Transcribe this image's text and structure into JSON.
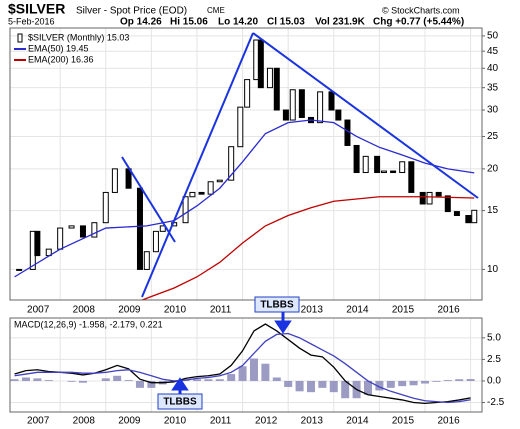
{
  "header": {
    "symbol": "$SILVER",
    "name": "Silver - Spot Price (EOD)",
    "exchange": "CME",
    "date": "5-Feb-2016",
    "open": "Op 14.26",
    "high": "Hi 15.06",
    "low": "Lo 14.20",
    "close": "Cl 15.03",
    "volume": "Vol 231.9K",
    "change": "Chg +0.77 (+5.44%)",
    "copyright": "© StockCharts.com"
  },
  "chart_data": [
    {
      "type": "candlestick",
      "x": [
        2006.1,
        2006.4,
        2006.5,
        2006.75,
        2007.0,
        2007.25,
        2007.5,
        2007.75,
        2008.0,
        2008.2,
        2008.5,
        2008.75,
        2008.9,
        2009.1,
        2009.25,
        2009.5,
        2009.75,
        2009.9,
        2010.1,
        2010.3,
        2010.5,
        2010.75,
        2010.95,
        2011.1,
        2011.3,
        2011.4,
        2011.6,
        2011.75,
        2011.95,
        2012.1,
        2012.3,
        2012.5,
        2012.7,
        2012.95,
        2013.1,
        2013.3,
        2013.5,
        2013.7,
        2013.95,
        2014.1,
        2014.3,
        2014.5,
        2014.7,
        2014.95,
        2015.1,
        2015.3,
        2015.5,
        2015.7,
        2015.95,
        2016.08
      ],
      "series": [
        {
          "name": "$SILVER (Monthly) 15.03",
          "color": "#000000",
          "values": [
            10,
            13,
            11,
            11.5,
            13.3,
            13.5,
            12.5,
            13.8,
            17,
            20,
            17.5,
            10,
            11.3,
            13,
            13.5,
            13.8,
            16.5,
            17,
            16.8,
            18.3,
            18.5,
            23.3,
            30.6,
            37,
            48.6,
            35,
            40,
            30,
            28,
            34.5,
            28.5,
            27.5,
            34,
            30,
            28,
            23.5,
            19.5,
            21.8,
            19.5,
            19.7,
            19.5,
            21,
            17,
            15.7,
            17,
            16.6,
            14.9,
            14.5,
            13.8,
            15.03
          ]
        },
        {
          "name": "EMA(50) 19.45",
          "color": "#2a2ad0",
          "x": [
            2006.0,
            2007.0,
            2008.0,
            2008.9,
            2009.5,
            2010.0,
            2010.5,
            2011.0,
            2011.5,
            2012.0,
            2012.5,
            2013.0,
            2013.5,
            2014.0,
            2014.5,
            2015.0,
            2015.5,
            2016.08
          ],
          "values": [
            9.5,
            11.5,
            13.3,
            13.5,
            14,
            15.5,
            17.5,
            21,
            25.5,
            27.5,
            28,
            27.5,
            25,
            23.2,
            22,
            20.8,
            20,
            19.45
          ]
        },
        {
          "name": "EMA(200) 16.36",
          "color": "#c00000",
          "x": [
            2008.8,
            2009.0,
            2009.5,
            2010.0,
            2010.5,
            2011.0,
            2011.5,
            2012.0,
            2012.5,
            2013.0,
            2014.0,
            2015.0,
            2016.08
          ],
          "values": [
            8.1,
            8.3,
            8.8,
            9.5,
            10.5,
            12,
            13.5,
            14.5,
            15.3,
            16,
            16.5,
            16.5,
            16.36
          ]
        }
      ],
      "log_scale": true,
      "xlim": [
        2005.9,
        2016.25
      ],
      "xticks": [
        2007,
        2008,
        2009,
        2010,
        2011,
        2012,
        2013,
        2014,
        2015,
        2016
      ],
      "ylim": [
        8.1,
        52.8
      ],
      "yticks": [
        10,
        15,
        20,
        25,
        30,
        35,
        40,
        45,
        50
      ],
      "grid": true
    },
    {
      "type": "line",
      "title": "MACD(12,26,9) -1.958, -2.179, 0.221",
      "x": [
        2006.0,
        2006.25,
        2006.5,
        2006.75,
        2007.0,
        2007.25,
        2007.5,
        2007.75,
        2008.0,
        2008.25,
        2008.5,
        2008.75,
        2009.0,
        2009.25,
        2009.5,
        2009.75,
        2010.0,
        2010.25,
        2010.5,
        2010.75,
        2011.0,
        2011.25,
        2011.5,
        2011.75,
        2012.0,
        2012.25,
        2012.5,
        2012.75,
        2013.0,
        2013.25,
        2013.5,
        2013.75,
        2014.0,
        2014.25,
        2014.5,
        2014.75,
        2015.0,
        2015.25,
        2015.5,
        2015.75,
        2016.0
      ],
      "series": [
        {
          "color": "#000000",
          "values": [
            0.8,
            1.2,
            1.3,
            1.1,
            1.0,
            0.9,
            0.7,
            0.9,
            1.3,
            1.8,
            1.4,
            0.2,
            -0.2,
            -0.2,
            -0.1,
            0.3,
            0.5,
            0.6,
            0.8,
            1.8,
            3.5,
            5.8,
            6.6,
            5.8,
            4.8,
            3.8,
            3.0,
            2.8,
            1.6,
            0.0,
            -1.0,
            -1.6,
            -1.8,
            -2.0,
            -2.2,
            -2.5,
            -2.6,
            -2.5,
            -2.4,
            -2.2,
            -1.958
          ]
        },
        {
          "color": "#4040c0",
          "values": [
            0.6,
            0.8,
            1.0,
            1.0,
            1.0,
            1.0,
            0.9,
            0.9,
            1.0,
            1.2,
            1.3,
            1.0,
            0.6,
            0.2,
            0.0,
            0.1,
            0.3,
            0.4,
            0.6,
            1.0,
            1.8,
            3.2,
            4.6,
            5.4,
            5.5,
            5.0,
            4.3,
            3.6,
            2.9,
            2.0,
            1.0,
            0.0,
            -0.7,
            -1.2,
            -1.6,
            -2.0,
            -2.3,
            -2.4,
            -2.5,
            -2.4,
            -2.179
          ]
        },
        {
          "type": "bar",
          "color": "#8a8aba",
          "values": [
            0.2,
            0.4,
            0.3,
            0.1,
            0.0,
            -0.1,
            -0.2,
            0.0,
            0.3,
            0.6,
            0.1,
            -0.8,
            -0.8,
            -0.4,
            -0.1,
            0.2,
            0.2,
            0.2,
            0.2,
            0.8,
            1.7,
            2.6,
            2.0,
            0.4,
            -0.7,
            -1.2,
            -1.3,
            -0.8,
            -1.3,
            -2.0,
            -2.0,
            -1.6,
            -1.1,
            -0.8,
            -0.6,
            -0.5,
            -0.3,
            -0.1,
            0.1,
            0.2,
            0.221
          ]
        }
      ],
      "annotations": [
        "TLBBS",
        "TLBBS"
      ],
      "xlim": [
        2005.9,
        2016.25
      ],
      "xticks": [
        2007,
        2008,
        2009,
        2010,
        2011,
        2012,
        2013,
        2014,
        2015,
        2016
      ],
      "ylim": [
        -3.6,
        7.3
      ],
      "yticks": [
        {
          "value": -2.5,
          "label": "-2.5"
        },
        {
          "value": 0,
          "label": "0.0"
        },
        {
          "value": 2.5,
          "label": "2.5"
        },
        {
          "value": 5,
          "label": "5.0"
        }
      ],
      "grid": true
    }
  ]
}
